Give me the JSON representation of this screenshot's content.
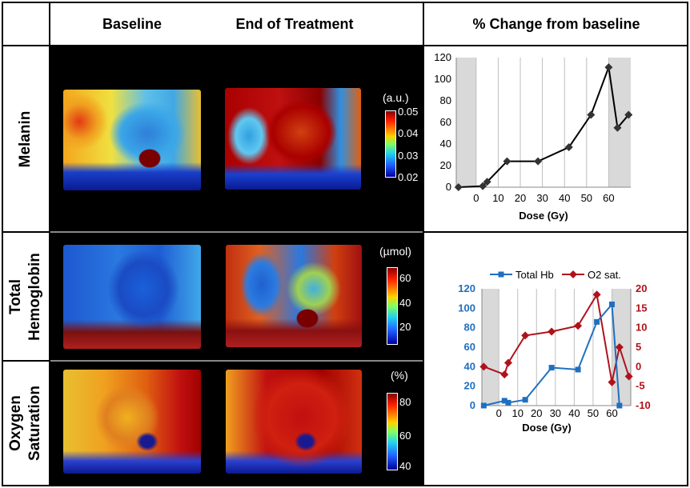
{
  "headers": {
    "baseline": "Baseline",
    "end_of_treatment": "End of Treatment",
    "pct_change": "% Change from baseline"
  },
  "rows": {
    "melanin": "Melanin",
    "hemoglobin_line1": "Total",
    "hemoglobin_line2": "Hemoglobin",
    "oxygen_line1": "Oxygen",
    "oxygen_line2": "Saturation"
  },
  "colorbars": {
    "melanin": {
      "unit": "(a.u.)",
      "ticks": [
        "0.05",
        "0.04",
        "0.03",
        "0.02"
      ]
    },
    "hemoglobin": {
      "unit": "(µmol)",
      "ticks": [
        "60",
        "40",
        "20"
      ]
    },
    "oxygen": {
      "unit": "(%)",
      "ticks": [
        "80",
        "60",
        "40"
      ]
    }
  },
  "chart_data": [
    {
      "type": "line",
      "xlabel": "Dose (Gy)",
      "ylabel": "",
      "ylim": [
        0,
        120
      ],
      "yticks": [
        0,
        20,
        40,
        60,
        80,
        100,
        120
      ],
      "xticks": [
        0,
        10,
        20,
        30,
        40,
        50,
        60
      ],
      "xlim": [
        -9,
        70
      ],
      "shaded_regions": [
        [
          -9,
          0
        ],
        [
          60,
          70
        ]
      ],
      "series": [
        {
          "x": [
            -8,
            3,
            5,
            14,
            28,
            42,
            52,
            60,
            64,
            69
          ],
          "y": [
            0,
            1,
            5,
            24,
            24,
            37,
            67,
            111,
            55,
            67
          ]
        }
      ]
    },
    {
      "type": "line",
      "xlabel": "Dose (Gy)",
      "ylabel": "",
      "xlim": [
        -9,
        70
      ],
      "xticks": [
        0,
        10,
        20,
        30,
        40,
        50,
        60
      ],
      "ylim": [
        0,
        120
      ],
      "yticks": [
        0,
        20,
        40,
        60,
        80,
        100,
        120
      ],
      "y2lim": [
        -10,
        20
      ],
      "y2ticks": [
        -10,
        -5,
        0,
        5,
        10,
        15,
        20
      ],
      "shaded_regions": [
        [
          -9,
          0
        ],
        [
          60,
          70
        ]
      ],
      "series": [
        {
          "name": "Total Hb",
          "axis": "left",
          "color": "#1F6FBF",
          "marker": "square",
          "x": [
            -8,
            3,
            5,
            14,
            28,
            42,
            52,
            60,
            64
          ],
          "y": [
            0,
            5,
            3,
            6,
            39,
            37,
            86,
            104,
            0
          ]
        },
        {
          "name": "O2 sat.",
          "axis": "right",
          "color": "#B0121B",
          "marker": "diamond",
          "x": [
            -8,
            3,
            5,
            14,
            28,
            42,
            52,
            60,
            64,
            69
          ],
          "y": [
            0,
            -2,
            1,
            8,
            9,
            10.5,
            18.5,
            -4,
            5,
            -2.5
          ]
        }
      ]
    }
  ]
}
